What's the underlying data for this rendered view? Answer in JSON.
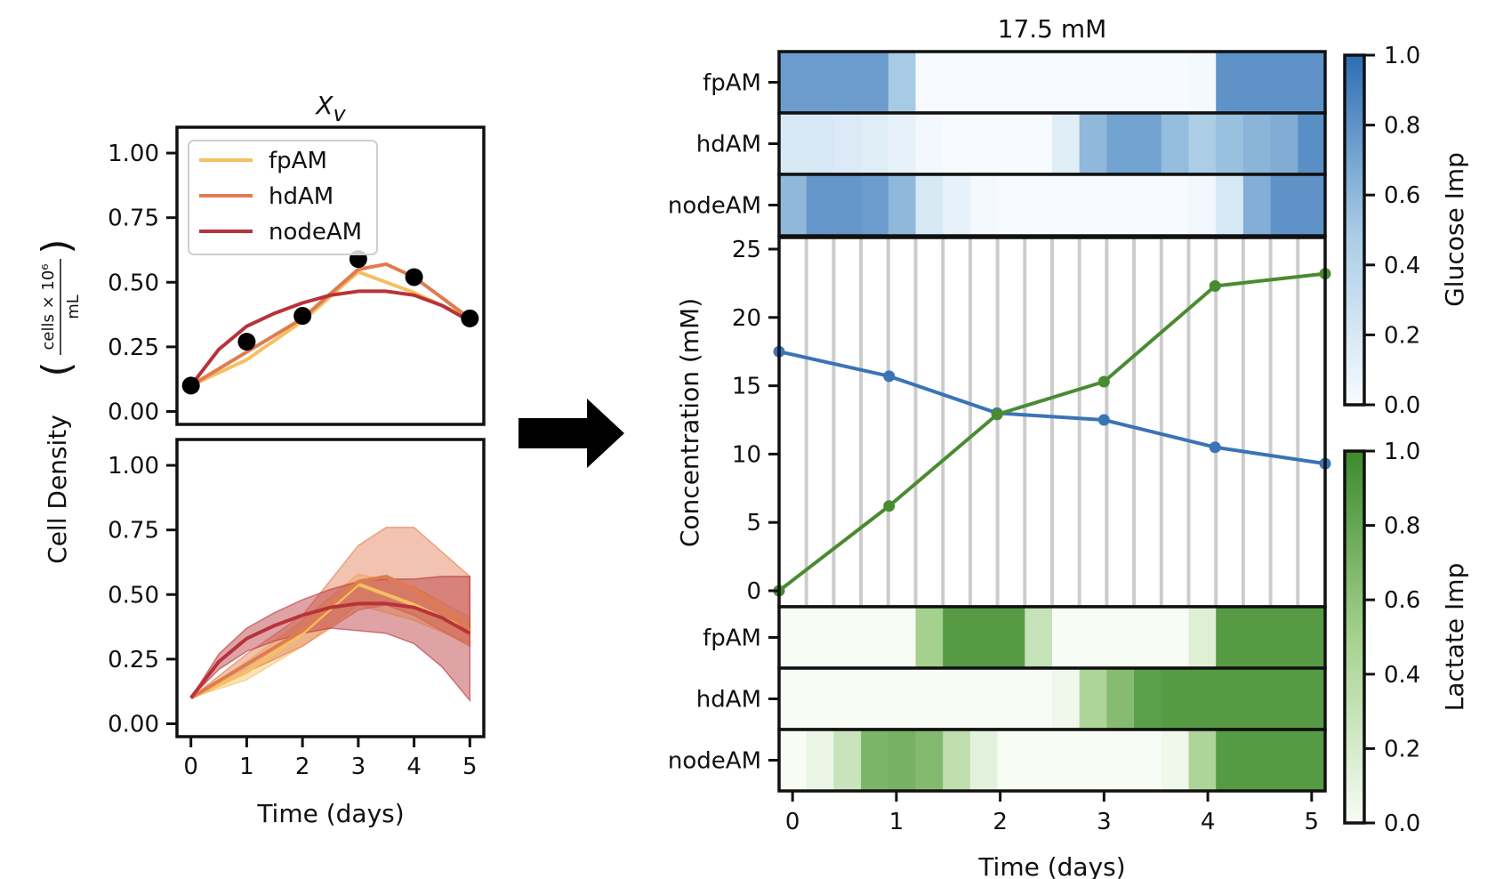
{
  "chart_data": [
    {
      "type": "line",
      "panel": "left-top",
      "title": "X_v",
      "ylabel": "Cell Density",
      "ylabel_unit": "cells × 10^6 / mL",
      "ylim": [
        -0.05,
        1.1
      ],
      "xlim": [
        -0.25,
        5.25
      ],
      "yticks": [
        "1.00",
        "0.75",
        "0.50",
        "0.25",
        "0.00"
      ],
      "ytick_values": [
        1.0,
        0.75,
        0.5,
        0.25,
        0.0
      ],
      "legend": {
        "placement": "top-left",
        "entries": [
          "fpAM",
          "hdAM",
          "nodeAM"
        ]
      },
      "colors": {
        "fpAM": "#f5c062",
        "hdAM": "#e07b50",
        "nodeAM": "#b7333a",
        "points": "#000000"
      },
      "observed": {
        "x": [
          0,
          1,
          2,
          3,
          4,
          5
        ],
        "y": [
          0.1,
          0.27,
          0.37,
          0.59,
          0.52,
          0.36
        ]
      },
      "series": [
        {
          "name": "fpAM",
          "x": [
            0,
            1,
            2,
            3,
            4,
            5
          ],
          "y": [
            0.1,
            0.2,
            0.35,
            0.54,
            0.46,
            0.36
          ]
        },
        {
          "name": "hdAM",
          "x": [
            0,
            1,
            2,
            3,
            3.5,
            4,
            5
          ],
          "y": [
            0.1,
            0.23,
            0.36,
            0.55,
            0.57,
            0.52,
            0.36
          ]
        },
        {
          "name": "nodeAM",
          "x": [
            0,
            0.5,
            1,
            1.5,
            2,
            2.5,
            3,
            3.5,
            4,
            4.5,
            5
          ],
          "y": [
            0.1,
            0.24,
            0.33,
            0.38,
            0.42,
            0.45,
            0.465,
            0.465,
            0.45,
            0.41,
            0.35
          ]
        }
      ]
    },
    {
      "type": "area",
      "panel": "left-bottom",
      "xlabel": "Time (days)",
      "ylim": [
        -0.05,
        1.1
      ],
      "xlim": [
        -0.25,
        5.25
      ],
      "xticks": [
        "0",
        "1",
        "2",
        "3",
        "4",
        "5"
      ],
      "yticks": [
        "1.00",
        "0.75",
        "0.50",
        "0.25",
        "0.00"
      ],
      "ytick_values": [
        1.0,
        0.75,
        0.5,
        0.25,
        0.0
      ],
      "colors": {
        "fpAM": "#f5c062",
        "hdAM": "#e07b50",
        "nodeAM": "#b7333a"
      },
      "series": [
        {
          "name": "fpAM",
          "x": [
            0,
            1,
            2,
            3,
            4,
            5
          ],
          "y": [
            0.1,
            0.2,
            0.35,
            0.54,
            0.46,
            0.36
          ],
          "lower": [
            0.1,
            0.17,
            0.3,
            0.46,
            0.4,
            0.31
          ],
          "upper": [
            0.1,
            0.24,
            0.4,
            0.58,
            0.53,
            0.41
          ]
        },
        {
          "name": "hdAM",
          "x": [
            0,
            1,
            2,
            3,
            3.5,
            4,
            5
          ],
          "y": [
            0.1,
            0.23,
            0.36,
            0.55,
            0.57,
            0.52,
            0.36
          ],
          "lower": [
            0.1,
            0.2,
            0.3,
            0.44,
            0.46,
            0.42,
            0.3
          ],
          "upper": [
            0.1,
            0.27,
            0.42,
            0.69,
            0.76,
            0.76,
            0.57
          ]
        },
        {
          "name": "nodeAM",
          "x": [
            0,
            0.5,
            1,
            1.5,
            2,
            2.5,
            3,
            3.5,
            4,
            4.5,
            5
          ],
          "y": [
            0.1,
            0.24,
            0.33,
            0.38,
            0.42,
            0.45,
            0.465,
            0.465,
            0.45,
            0.41,
            0.35
          ],
          "lower": [
            0.1,
            0.21,
            0.28,
            0.32,
            0.35,
            0.37,
            0.36,
            0.35,
            0.31,
            0.22,
            0.09
          ],
          "upper": [
            0.1,
            0.27,
            0.37,
            0.43,
            0.48,
            0.52,
            0.55,
            0.56,
            0.56,
            0.57,
            0.57
          ]
        }
      ]
    },
    {
      "type": "heatmap",
      "panel": "right-glucose-importance",
      "title": "17.5 mM",
      "rows": [
        "fpAM",
        "hdAM",
        "nodeAM"
      ],
      "columns_count": 20,
      "values": [
        [
          0.75,
          0.75,
          0.75,
          0.75,
          0.5,
          0.0,
          0.0,
          0.0,
          0.0,
          0.0,
          0.0,
          0.0,
          0.0,
          0.0,
          0.0,
          0.02,
          0.8,
          0.8,
          0.8,
          0.8
        ],
        [
          0.2,
          0.2,
          0.18,
          0.15,
          0.1,
          0.03,
          0.0,
          0.0,
          0.0,
          0.0,
          0.15,
          0.6,
          0.72,
          0.72,
          0.58,
          0.48,
          0.56,
          0.62,
          0.66,
          0.82
        ],
        [
          0.6,
          0.78,
          0.78,
          0.75,
          0.6,
          0.2,
          0.1,
          0.02,
          0.0,
          0.0,
          0.0,
          0.0,
          0.0,
          0.0,
          0.0,
          0.04,
          0.2,
          0.65,
          0.8,
          0.8
        ]
      ],
      "colorbar": {
        "label": "Glucose Imp",
        "min": 0.0,
        "max": 1.0,
        "ticks": [
          "1.0",
          "0.8",
          "0.6",
          "0.4",
          "0.2",
          "0.0"
        ],
        "tick_values": [
          1.0,
          0.8,
          0.6,
          0.4,
          0.2,
          0.0
        ],
        "color_low": "#f7fbff",
        "color_high": "#2e6db4"
      }
    },
    {
      "type": "line",
      "panel": "right-concentration",
      "ylabel": "Concentration (mM)",
      "ylim": [
        0,
        25
      ],
      "yticks": [
        "25",
        "20",
        "15",
        "10",
        "5",
        "0"
      ],
      "ytick_values": [
        25,
        20,
        15,
        10,
        5,
        0
      ],
      "xlim": [
        -0.13,
        5.13
      ],
      "grid": "vertical",
      "colors": {
        "glucose": "#3a74b6",
        "lactate": "#4a8b32"
      },
      "series": [
        {
          "x": [
            -0.13,
            0.93,
            1.97,
            3.0,
            4.07,
            5.13
          ],
          "y": [
            17.5,
            15.7,
            13.0,
            12.5,
            10.5,
            9.3
          ],
          "color": "#3a74b6"
        },
        {
          "x": [
            -0.13,
            0.93,
            1.97,
            3.0,
            4.07,
            5.13
          ],
          "y": [
            0.0,
            6.2,
            12.9,
            15.3,
            22.3,
            23.2
          ],
          "color": "#4a8b32"
        }
      ]
    },
    {
      "type": "heatmap",
      "panel": "right-lactate-importance",
      "xlabel": "Time (days)",
      "xticks": [
        "0",
        "1",
        "2",
        "3",
        "4",
        "5"
      ],
      "xtick_values": [
        0,
        1,
        2,
        3,
        4,
        5
      ],
      "rows": [
        "fpAM",
        "hdAM",
        "nodeAM"
      ],
      "columns_count": 20,
      "values": [
        [
          0.0,
          0.0,
          0.0,
          0.0,
          0.0,
          0.5,
          0.88,
          0.88,
          0.88,
          0.3,
          0.0,
          0.0,
          0.0,
          0.0,
          0.0,
          0.15,
          0.88,
          0.88,
          0.88,
          0.88
        ],
        [
          0.0,
          0.0,
          0.0,
          0.0,
          0.0,
          0.0,
          0.0,
          0.0,
          0.0,
          0.0,
          0.05,
          0.45,
          0.65,
          0.85,
          0.88,
          0.88,
          0.88,
          0.88,
          0.88,
          0.88
        ],
        [
          0.0,
          0.08,
          0.28,
          0.7,
          0.72,
          0.66,
          0.35,
          0.12,
          0.0,
          0.0,
          0.0,
          0.0,
          0.0,
          0.0,
          0.05,
          0.45,
          0.88,
          0.88,
          0.88,
          0.88
        ]
      ],
      "colorbar": {
        "label": "Lactate Imp",
        "min": 0.0,
        "max": 1.0,
        "ticks": [
          "1.0",
          "0.8",
          "0.6",
          "0.4",
          "0.2",
          "0.0"
        ],
        "tick_values": [
          1.0,
          0.8,
          0.6,
          0.4,
          0.2,
          0.0
        ],
        "color_low": "#f7fcf5",
        "color_high": "#3d8a2c"
      }
    }
  ]
}
